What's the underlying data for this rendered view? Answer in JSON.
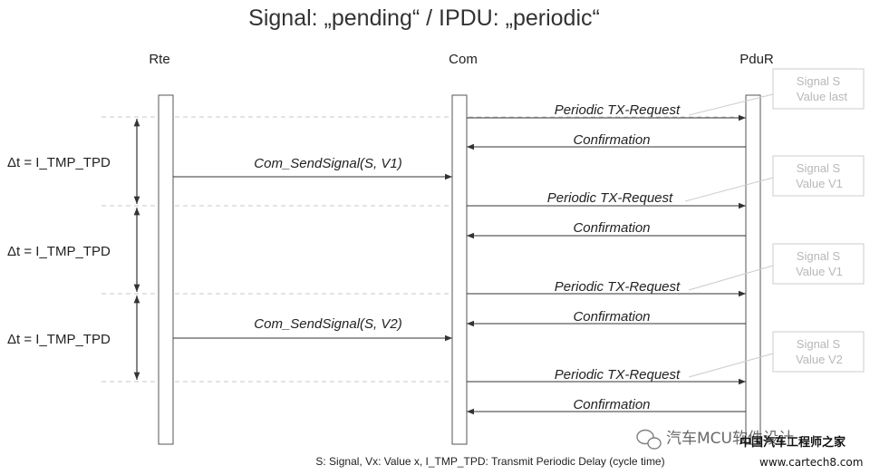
{
  "title": "Signal: „pending“ / IPDU: „periodic“",
  "lifelines": [
    "Rte",
    "Com",
    "PduR"
  ],
  "delta_label": "Δt = I_TMP_TPD",
  "messages": [
    {
      "label": "Periodic TX-Request"
    },
    {
      "label": "Confirmation"
    },
    {
      "label": "Com_SendSignal(S, V1)"
    },
    {
      "label": "Periodic TX-Request"
    },
    {
      "label": "Confirmation"
    },
    {
      "label": "Periodic TX-Request"
    },
    {
      "label": "Confirmation"
    },
    {
      "label": "Com_SendSignal(S, V2)"
    },
    {
      "label": "Periodic TX-Request"
    },
    {
      "label": "Confirmation"
    }
  ],
  "notes": [
    {
      "line1": "Signal S",
      "line2": "Value last"
    },
    {
      "line1": "Signal S",
      "line2": "Value V1"
    },
    {
      "line1": "Signal S",
      "line2": "Value V1"
    },
    {
      "line1": "Signal S",
      "line2": "Value V2"
    }
  ],
  "footer": "S: Signal,  Vx: Value x,  I_TMP_TPD: Transmit Periodic Delay (cycle time)",
  "watermark": {
    "channel": "汽车MCU软件设计",
    "site_name": "中国汽车工程师之家",
    "site_url": "www.cartech8.com"
  }
}
